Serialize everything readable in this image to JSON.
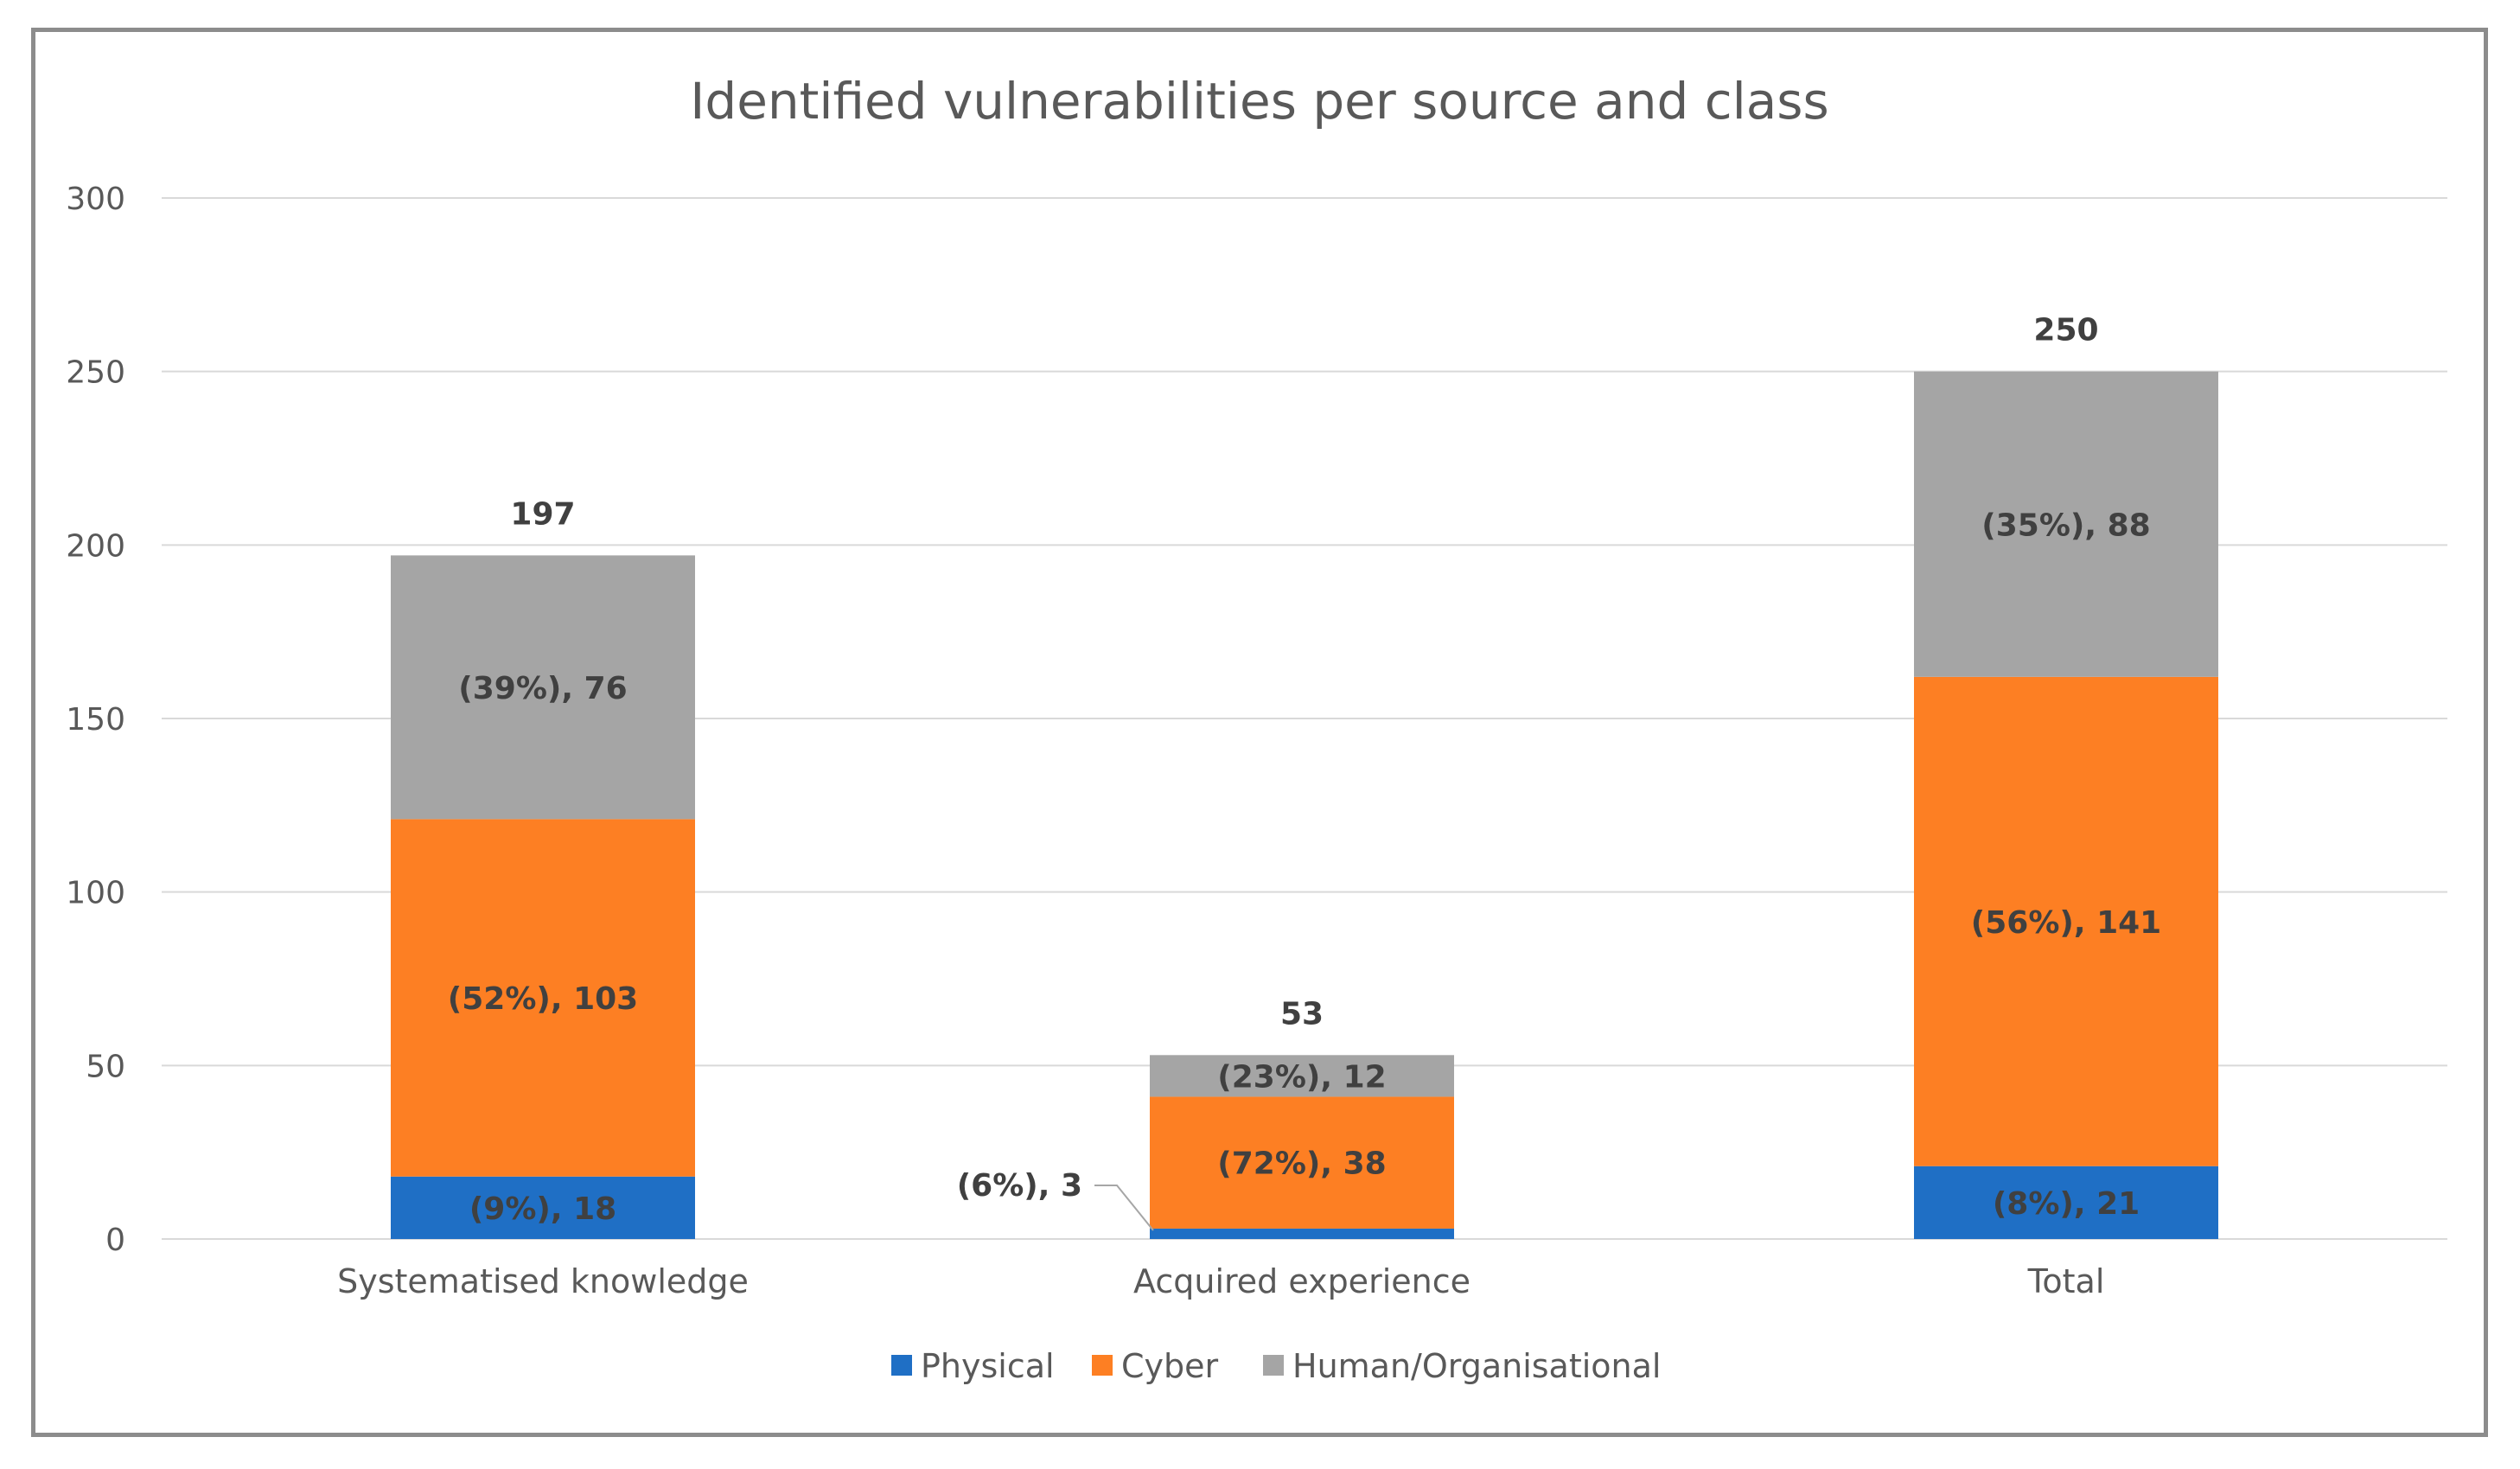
{
  "chart_data": {
    "type": "bar",
    "stacked": true,
    "title": "Identified vulnerabilities per source and class",
    "xlabel": "",
    "ylabel": "",
    "ylim": [
      0,
      300
    ],
    "yticks": [
      0,
      50,
      100,
      150,
      200,
      250,
      300
    ],
    "ytick_labels": [
      "0",
      "50",
      "100",
      "150",
      "200",
      "250",
      "300"
    ],
    "grid": true,
    "legend_position": "bottom",
    "categories": [
      "Systematised knowledge",
      "Acquired experience",
      "Total"
    ],
    "totals": [
      197,
      53,
      250
    ],
    "total_labels": [
      "197",
      "53",
      "250"
    ],
    "series": [
      {
        "name": "Physical",
        "color": "#1f6fc5",
        "values": [
          18,
          3,
          21
        ],
        "labels": [
          "(9%), 18",
          "(6%), 3",
          "(8%), 21"
        ]
      },
      {
        "name": "Cyber",
        "color": "#fd7f23",
        "values": [
          103,
          38,
          141
        ],
        "labels": [
          "(52%), 103",
          "(72%), 38",
          "(56%), 141"
        ]
      },
      {
        "name": "Human/Organisational",
        "color": "#a5a5a5",
        "values": [
          76,
          12,
          88
        ],
        "labels": [
          "(39%), 76",
          "(23%), 12",
          "(35%), 88"
        ]
      }
    ]
  }
}
